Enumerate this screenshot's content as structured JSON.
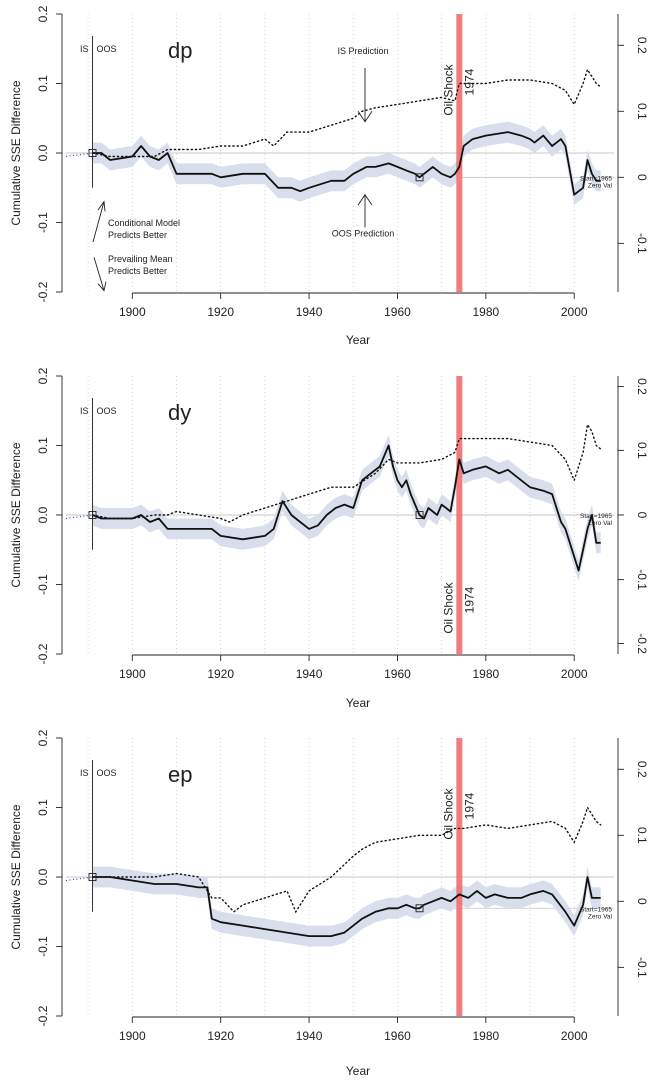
{
  "chart_data": [
    {
      "type": "line",
      "title": "dp",
      "xlabel": "Year",
      "ylabel": "Cumulative SSE Difference",
      "xlim": [
        1885,
        2009
      ],
      "ylim": [
        -0.2,
        0.2
      ],
      "xticks": [
        1900,
        1920,
        1940,
        1960,
        1980,
        2000
      ],
      "yticks": [
        "-0.2",
        "-0.1",
        "0.0",
        "0.1",
        "0.2"
      ],
      "right_ticks": [
        "-0.1",
        "0",
        "0.1",
        "0.2"
      ],
      "oil_shock": {
        "year": 1974,
        "label": "Oil Shock",
        "sublabel": "1974",
        "label_position": "top"
      },
      "is_oos": {
        "year": 1891,
        "is_label": "IS",
        "oos_label": "OOS"
      },
      "start_marker": {
        "year": 1965,
        "label": "Start=1965",
        "sublabel": "Zero Val"
      },
      "annotations": {
        "is_prediction": "IS Prediction",
        "oos_prediction": "OOS Prediction",
        "conditional": [
          "Conditional Model",
          "Predicts Better"
        ],
        "prevailing": [
          "Prevailing Mean",
          "Predicts Better"
        ]
      },
      "series": [
        {
          "style": "oos",
          "x": [
            1891,
            1893,
            1895,
            1900,
            1902,
            1904,
            1906,
            1908,
            1910,
            1918,
            1920,
            1925,
            1930,
            1933,
            1936,
            1938,
            1940,
            1945,
            1948,
            1950,
            1953,
            1955,
            1958,
            1960,
            1962,
            1964,
            1965,
            1966,
            1968,
            1970,
            1972,
            1973,
            1974,
            1975,
            1977,
            1980,
            1985,
            1988,
            1990,
            1991,
            1993,
            1995,
            1997,
            1998,
            2000,
            2002,
            2003,
            2004,
            2005,
            2006
          ],
          "y": [
            0,
            0,
            -0.01,
            -0.005,
            0.01,
            -0.005,
            -0.01,
            0,
            -0.03,
            -0.03,
            -0.035,
            -0.03,
            -0.03,
            -0.05,
            -0.05,
            -0.055,
            -0.05,
            -0.04,
            -0.04,
            -0.03,
            -0.02,
            -0.02,
            -0.015,
            -0.02,
            -0.025,
            -0.03,
            -0.035,
            -0.03,
            -0.02,
            -0.03,
            -0.035,
            -0.03,
            -0.02,
            0.01,
            0.02,
            0.025,
            0.03,
            0.025,
            0.02,
            0.015,
            0.025,
            0.01,
            0.02,
            0.01,
            -0.06,
            -0.05,
            -0.01,
            -0.03,
            -0.04,
            -0.04
          ]
        },
        {
          "style": "is",
          "x": [
            1885,
            1891,
            1895,
            1900,
            1905,
            1908,
            1910,
            1915,
            1920,
            1925,
            1930,
            1932,
            1935,
            1940,
            1945,
            1950,
            1952,
            1955,
            1960,
            1965,
            1970,
            1973,
            1974,
            1975,
            1980,
            1985,
            1990,
            1995,
            1998,
            2000,
            2002,
            2003,
            2004,
            2005,
            2006
          ],
          "y": [
            -0.005,
            0,
            -0.005,
            -0.005,
            -0.005,
            0.005,
            0.005,
            0.005,
            0.01,
            0.01,
            0.02,
            0.01,
            0.03,
            0.03,
            0.04,
            0.05,
            0.06,
            0.065,
            0.07,
            0.075,
            0.08,
            0.075,
            0.1,
            0.1,
            0.1,
            0.105,
            0.105,
            0.1,
            0.09,
            0.07,
            0.1,
            0.12,
            0.11,
            0.1,
            0.095
          ]
        }
      ]
    },
    {
      "type": "line",
      "title": "dy",
      "xlabel": "Year",
      "ylabel": "Cumulative SSE Difference",
      "xlim": [
        1885,
        2009
      ],
      "ylim": [
        -0.2,
        0.2
      ],
      "xticks": [
        1900,
        1920,
        1940,
        1960,
        1980,
        2000
      ],
      "yticks": [
        "-0.2",
        "-0.1",
        "0.0",
        "0.1",
        "0.2"
      ],
      "right_ticks": [
        "-0.2",
        "-0.1",
        "0",
        "0.1",
        "0.2"
      ],
      "oil_shock": {
        "year": 1974,
        "label": "Oil Shock",
        "sublabel": "1974",
        "label_position": "bottom"
      },
      "is_oos": {
        "year": 1891,
        "is_label": "IS",
        "oos_label": "OOS"
      },
      "start_marker": {
        "year": 1965,
        "label": "Start=1965",
        "sublabel": "Zero Val"
      },
      "series": [
        {
          "style": "oos",
          "x": [
            1891,
            1893,
            1895,
            1900,
            1902,
            1904,
            1906,
            1908,
            1910,
            1918,
            1920,
            1925,
            1930,
            1932,
            1934,
            1936,
            1938,
            1940,
            1942,
            1944,
            1946,
            1948,
            1950,
            1952,
            1954,
            1956,
            1958,
            1959,
            1960,
            1961,
            1962,
            1963,
            1964,
            1965,
            1966,
            1967,
            1968,
            1969,
            1970,
            1971,
            1972,
            1973,
            1974,
            1975,
            1977,
            1980,
            1983,
            1985,
            1988,
            1990,
            1993,
            1995,
            1997,
            1998,
            2000,
            2001,
            2002,
            2003,
            2004,
            2005,
            2006
          ],
          "y": [
            0,
            -0.005,
            -0.005,
            -0.005,
            0,
            -0.01,
            -0.005,
            -0.02,
            -0.02,
            -0.02,
            -0.03,
            -0.035,
            -0.03,
            -0.02,
            0.02,
            0,
            -0.01,
            -0.02,
            -0.015,
            0,
            0.01,
            0.015,
            0.01,
            0.05,
            0.06,
            0.07,
            0.1,
            0.07,
            0.05,
            0.04,
            0.05,
            0.03,
            0.015,
            0,
            -0.005,
            0.01,
            0.005,
            0,
            0.015,
            0.01,
            0.005,
            0.04,
            0.08,
            0.06,
            0.065,
            0.07,
            0.06,
            0.065,
            0.05,
            0.04,
            0.035,
            0.03,
            -0.01,
            -0.02,
            -0.06,
            -0.08,
            -0.05,
            -0.02,
            0,
            -0.04,
            -0.04
          ]
        },
        {
          "style": "is",
          "x": [
            1885,
            1891,
            1895,
            1900,
            1905,
            1908,
            1910,
            1915,
            1920,
            1922,
            1925,
            1930,
            1935,
            1940,
            1945,
            1950,
            1955,
            1958,
            1960,
            1965,
            1970,
            1973,
            1974,
            1975,
            1980,
            1985,
            1990,
            1995,
            1998,
            2000,
            2002,
            2003,
            2004,
            2005,
            2006
          ],
          "y": [
            -0.005,
            0,
            -0.005,
            -0.005,
            0,
            0,
            0.005,
            0,
            -0.005,
            -0.01,
            0,
            0.01,
            0.02,
            0.03,
            0.04,
            0.04,
            0.06,
            0.08,
            0.075,
            0.075,
            0.08,
            0.09,
            0.11,
            0.11,
            0.11,
            0.11,
            0.105,
            0.1,
            0.08,
            0.05,
            0.09,
            0.13,
            0.12,
            0.1,
            0.095
          ]
        }
      ]
    },
    {
      "type": "line",
      "title": "ep",
      "xlabel": "Year",
      "ylabel": "Cumulative SSE Difference",
      "xlim": [
        1885,
        2009
      ],
      "ylim": [
        -0.2,
        0.2
      ],
      "xticks": [
        1900,
        1920,
        1940,
        1960,
        1980,
        2000
      ],
      "yticks": [
        "-0.2",
        "-0.1",
        "0.0",
        "0.1",
        "0.2"
      ],
      "right_ticks": [
        "-0.1",
        "0",
        "0.1",
        "0.2"
      ],
      "oil_shock": {
        "year": 1974,
        "label": "Oil Shock",
        "sublabel": "1974",
        "label_position": "top"
      },
      "is_oos": {
        "year": 1891,
        "is_label": "IS",
        "oos_label": "OOS"
      },
      "start_marker": {
        "year": 1965,
        "label": "Start=1965",
        "sublabel": "Zero Val"
      },
      "series": [
        {
          "style": "oos",
          "x": [
            1891,
            1895,
            1900,
            1905,
            1910,
            1915,
            1917,
            1918,
            1920,
            1925,
            1930,
            1935,
            1940,
            1945,
            1948,
            1950,
            1952,
            1955,
            1958,
            1960,
            1962,
            1964,
            1965,
            1966,
            1968,
            1970,
            1972,
            1974,
            1976,
            1978,
            1980,
            1982,
            1985,
            1988,
            1990,
            1993,
            1995,
            1998,
            2000,
            2002,
            2003,
            2004,
            2005,
            2006
          ],
          "y": [
            0,
            0,
            -0.005,
            -0.01,
            -0.01,
            -0.015,
            -0.015,
            -0.06,
            -0.065,
            -0.07,
            -0.075,
            -0.08,
            -0.085,
            -0.085,
            -0.08,
            -0.07,
            -0.06,
            -0.05,
            -0.045,
            -0.045,
            -0.04,
            -0.045,
            -0.045,
            -0.04,
            -0.035,
            -0.03,
            -0.035,
            -0.025,
            -0.03,
            -0.02,
            -0.03,
            -0.025,
            -0.03,
            -0.03,
            -0.025,
            -0.02,
            -0.025,
            -0.05,
            -0.07,
            -0.04,
            0,
            -0.03,
            -0.03,
            -0.03
          ]
        },
        {
          "style": "is",
          "x": [
            1885,
            1891,
            1895,
            1900,
            1905,
            1910,
            1915,
            1918,
            1920,
            1923,
            1925,
            1930,
            1935,
            1937,
            1940,
            1945,
            1950,
            1952,
            1955,
            1960,
            1965,
            1970,
            1973,
            1975,
            1980,
            1985,
            1990,
            1995,
            1998,
            2000,
            2002,
            2003,
            2004,
            2005,
            2006
          ],
          "y": [
            -0.005,
            0,
            0,
            0,
            0,
            0.005,
            0,
            -0.03,
            -0.03,
            -0.05,
            -0.04,
            -0.03,
            -0.02,
            -0.05,
            -0.02,
            0,
            0.03,
            0.04,
            0.05,
            0.055,
            0.06,
            0.06,
            0.07,
            0.07,
            0.075,
            0.07,
            0.075,
            0.08,
            0.07,
            0.05,
            0.08,
            0.1,
            0.09,
            0.08,
            0.075
          ]
        }
      ]
    }
  ]
}
